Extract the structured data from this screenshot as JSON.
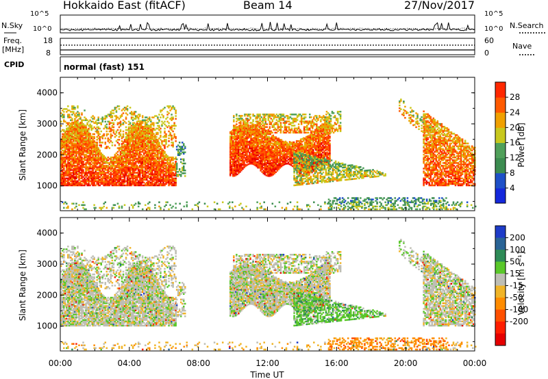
{
  "header": {
    "title": "Hokkaido East (fitACF)",
    "beam": "Beam 14",
    "date": "27/Nov/2017"
  },
  "top_panels": {
    "nsky_label": "N.Sky",
    "nsky_ticks": [
      "10^5",
      "10^0"
    ],
    "nsky_right_ticks": [
      "10^5",
      "10^0"
    ],
    "nsearch_label": "N.Search",
    "freq_label": "Freq.",
    "freq_unit": "[MHz]",
    "freq_ticks": [
      "18",
      "8"
    ],
    "nave_ticks": [
      "60",
      "0"
    ],
    "nave_label": "Nave",
    "cpid_label": "CPID",
    "cpid_value": "normal (fast) 151"
  },
  "colors": {
    "power": [
      "#1428dc",
      "#1e50c8",
      "#3c8c50",
      "#50a05a",
      "#c8c81e",
      "#f0a000",
      "#ff5a00",
      "#ff2800",
      "#e60000"
    ],
    "velocity": [
      "#1e3cc8",
      "#2a6496",
      "#2e8b57",
      "#5ac82a",
      "#bebeb4",
      "#f0b428",
      "#ff8c00",
      "#ff5000",
      "#ff1e00",
      "#e60000"
    ]
  },
  "chart_data": [
    {
      "type": "heatmap",
      "name": "power",
      "ylabel": "Slant Range [km]",
      "yticks": [
        "1000",
        "2000",
        "3000",
        "4000"
      ],
      "ylim": [
        200,
        4500
      ],
      "colorbar_label": "Power [dB]",
      "colorbar_ticks": [
        "4",
        "8",
        "12",
        "16",
        "20",
        "24",
        "28"
      ],
      "colorbar_range": [
        0,
        32
      ]
    },
    {
      "type": "heatmap",
      "name": "velocity",
      "ylabel": "Slant Range [km]",
      "yticks": [
        "1000",
        "2000",
        "3000",
        "4000"
      ],
      "ylim": [
        200,
        4500
      ],
      "colorbar_label": "Velocity [m s⁻¹]",
      "colorbar_ticks": [
        "200",
        "100",
        "50",
        "15",
        "-15",
        "-50",
        "-100",
        "-200"
      ]
    }
  ],
  "xaxis": {
    "label": "Time UT",
    "ticks": [
      "00:00",
      "04:00",
      "08:00",
      "12:00",
      "16:00",
      "20:00",
      "00:00"
    ],
    "xlim_hours": [
      0,
      24
    ]
  }
}
